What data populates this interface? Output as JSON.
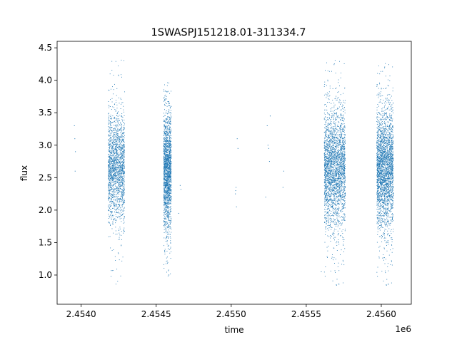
{
  "chart_data": {
    "type": "scatter",
    "title": "1SWASPJ151218.01-311334.7",
    "xlabel": "time",
    "ylabel": "flux",
    "x_offset_label": "1e6",
    "xlim": [
      2453840,
      2456200
    ],
    "ylim": [
      0.55,
      4.6
    ],
    "x_ticks": [
      2454000,
      2454500,
      2455000,
      2455500,
      2456000
    ],
    "x_tick_labels": [
      "2.4540",
      "2.4545",
      "2.4550",
      "2.4555",
      "2.4560"
    ],
    "y_ticks": [
      1.0,
      1.5,
      2.0,
      2.5,
      3.0,
      3.5,
      4.0,
      4.5
    ],
    "y_tick_labels": [
      "1.0",
      "1.5",
      "2.0",
      "2.5",
      "3.0",
      "3.5",
      "4.0",
      "4.5"
    ],
    "grid": false,
    "marker_color": "#1f77b4",
    "series": [
      {
        "clusters": [
          {
            "x_range": [
              2454180,
              2454290
            ],
            "y_center": 2.65,
            "y_spread": 0.42,
            "y_min": 0.85,
            "y_max": 4.4,
            "density": "high"
          },
          {
            "x_range": [
              2454550,
              2454600
            ],
            "y_center": 2.6,
            "y_spread": 0.45,
            "y_min": 0.95,
            "y_max": 4.0,
            "density": "high"
          },
          {
            "x_range": [
              2455620,
              2455760
            ],
            "y_center": 2.65,
            "y_spread": 0.45,
            "y_min": 0.8,
            "y_max": 4.35,
            "density": "very-high"
          },
          {
            "x_range": [
              2455970,
              2456080
            ],
            "y_center": 2.65,
            "y_spread": 0.45,
            "y_min": 0.8,
            "y_max": 4.3,
            "density": "very-high"
          }
        ],
        "sparse_points": [
          {
            "x": 2453955,
            "y": 3.3
          },
          {
            "x": 2453958,
            "y": 3.1
          },
          {
            "x": 2453962,
            "y": 2.9
          },
          {
            "x": 2453960,
            "y": 2.6
          },
          {
            "x": 2454660,
            "y": 2.38
          },
          {
            "x": 2454665,
            "y": 2.32
          },
          {
            "x": 2454650,
            "y": 1.95
          },
          {
            "x": 2455030,
            "y": 2.3
          },
          {
            "x": 2455028,
            "y": 2.25
          },
          {
            "x": 2455032,
            "y": 2.35
          },
          {
            "x": 2455040,
            "y": 3.1
          },
          {
            "x": 2455045,
            "y": 2.95
          },
          {
            "x": 2455035,
            "y": 2.05
          },
          {
            "x": 2455240,
            "y": 3.3
          },
          {
            "x": 2455245,
            "y": 3.0
          },
          {
            "x": 2455250,
            "y": 2.95
          },
          {
            "x": 2455260,
            "y": 3.45
          },
          {
            "x": 2455255,
            "y": 2.75
          },
          {
            "x": 2455230,
            "y": 2.2
          },
          {
            "x": 2455350,
            "y": 2.6
          },
          {
            "x": 2455345,
            "y": 2.35
          },
          {
            "x": 2455600,
            "y": 1.05
          }
        ]
      }
    ]
  }
}
